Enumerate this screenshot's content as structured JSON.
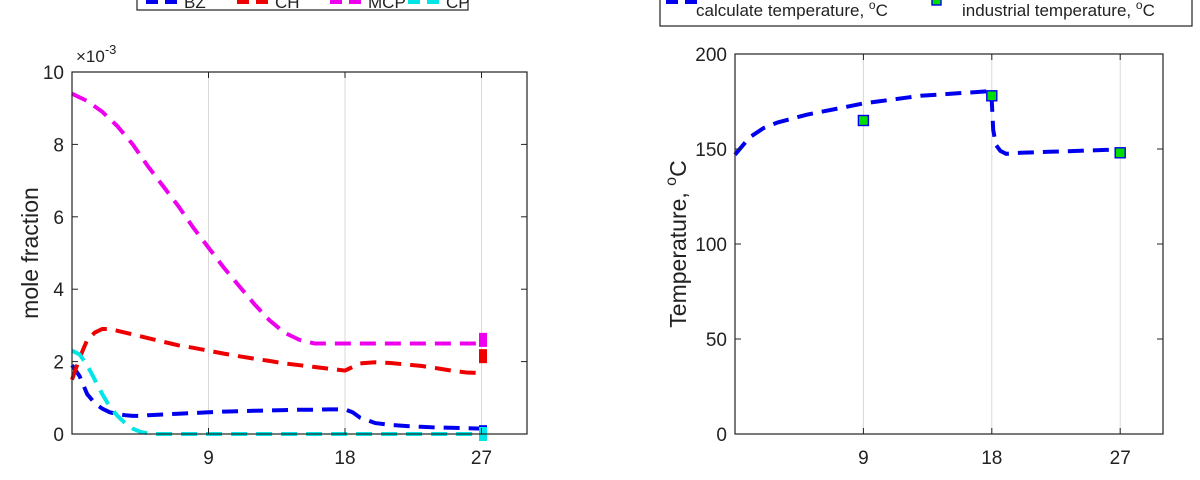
{
  "chart_data": [
    {
      "type": "line",
      "xlabel": "",
      "ylabel": "mole fraction",
      "y_exponent_label": "×10",
      "y_exponent_power": "-3",
      "xlim": [
        0,
        30
      ],
      "ylim": [
        0,
        10
      ],
      "xticks": [
        9,
        18,
        27
      ],
      "xtick_labels": [
        "9",
        "18",
        "27"
      ],
      "yticks": [
        0,
        2,
        4,
        6,
        8,
        10
      ],
      "ytick_labels": [
        "0",
        "2",
        "4",
        "6",
        "8",
        "10"
      ],
      "grid": "vertical lines at x ticks",
      "legend_placement": "top, above plot (partially cropped)",
      "series": [
        {
          "name": "BZ",
          "color": "#0000ee",
          "x": [
            0,
            0.5,
            1,
            1.5,
            2,
            2.5,
            3,
            3.5,
            4,
            4.5,
            5,
            6,
            7,
            8,
            9,
            10,
            11,
            12,
            13,
            14,
            15,
            16,
            17,
            18,
            18.5,
            19,
            20,
            21,
            22,
            23,
            24,
            25,
            26,
            27
          ],
          "y": [
            1.9,
            1.6,
            1.1,
            0.85,
            0.7,
            0.6,
            0.55,
            0.52,
            0.5,
            0.5,
            0.52,
            0.54,
            0.56,
            0.58,
            0.6,
            0.62,
            0.63,
            0.64,
            0.65,
            0.66,
            0.67,
            0.67,
            0.68,
            0.68,
            0.6,
            0.45,
            0.3,
            0.25,
            0.22,
            0.2,
            0.18,
            0.17,
            0.16,
            0.15
          ]
        },
        {
          "name": "CH",
          "color": "#ee0000",
          "x": [
            0,
            0.5,
            1,
            1.5,
            2,
            2.5,
            3,
            4,
            5,
            6,
            7,
            8,
            9,
            10,
            11,
            12,
            13,
            14,
            15,
            16,
            17,
            18,
            18.5,
            19,
            20,
            21,
            22,
            23,
            24,
            25,
            26,
            27
          ],
          "y": [
            1.5,
            2.1,
            2.6,
            2.8,
            2.9,
            2.9,
            2.85,
            2.75,
            2.65,
            2.55,
            2.45,
            2.38,
            2.3,
            2.22,
            2.15,
            2.08,
            2.02,
            1.95,
            1.9,
            1.85,
            1.8,
            1.75,
            1.85,
            1.95,
            1.98,
            1.96,
            1.92,
            1.88,
            1.82,
            1.75,
            1.7,
            1.68
          ]
        },
        {
          "name": "MCP",
          "color": "#ee00ee",
          "x": [
            0,
            1,
            2,
            3,
            4,
            5,
            6,
            7,
            8,
            9,
            10,
            11,
            12,
            13,
            14,
            15,
            16,
            17,
            18,
            19,
            20,
            21,
            22,
            23,
            24,
            25,
            26,
            27
          ],
          "y": [
            9.4,
            9.2,
            8.9,
            8.5,
            8.0,
            7.4,
            6.85,
            6.3,
            5.7,
            5.15,
            4.6,
            4.1,
            3.6,
            3.15,
            2.8,
            2.6,
            2.5,
            2.5,
            2.5,
            2.5,
            2.5,
            2.5,
            2.5,
            2.5,
            2.5,
            2.5,
            2.5,
            2.5
          ]
        },
        {
          "name": "CP",
          "color": "#00e5e5",
          "x": [
            0,
            0.5,
            1,
            1.5,
            2,
            2.5,
            3,
            3.5,
            4,
            4.5,
            5,
            5.5,
            6,
            7,
            9,
            12,
            15,
            18,
            21,
            24,
            27
          ],
          "y": [
            2.3,
            2.2,
            1.9,
            1.5,
            1.1,
            0.75,
            0.5,
            0.3,
            0.15,
            0.06,
            0.02,
            0.0,
            0.0,
            0.0,
            0.0,
            0.0,
            0.0,
            0.0,
            0.0,
            0.0,
            0.0
          ]
        }
      ],
      "end_markers": [
        {
          "series": "BZ",
          "x": 27,
          "y": 0.05
        },
        {
          "series": "CH",
          "x": 27,
          "y": 2.15
        },
        {
          "series": "MCP",
          "x": 27,
          "y": 2.6
        },
        {
          "series": "CP",
          "x": 27,
          "y": 0.0
        }
      ]
    },
    {
      "type": "line",
      "xlabel": "",
      "ylabel": "Temperature, ",
      "ylabel_super": "o",
      "ylabel_unit": "C",
      "xlim": [
        0,
        30
      ],
      "ylim": [
        0,
        200
      ],
      "xticks": [
        9,
        18,
        27
      ],
      "xtick_labels": [
        "9",
        "18",
        "27"
      ],
      "yticks": [
        0,
        50,
        100,
        150,
        200
      ],
      "ytick_labels": [
        "0",
        "50",
        "100",
        "150",
        "200"
      ],
      "grid": "vertical lines at x ticks",
      "legend_placement": "top, above plot (partially cropped)",
      "series": [
        {
          "name": "calculate temperature, °C",
          "legend_text": "calculate temperature,",
          "legend_super": "o",
          "legend_unit": "C",
          "color": "#0000ee",
          "style": "dashed",
          "x": [
            0,
            1,
            2,
            3,
            4,
            5,
            6,
            7,
            8,
            9,
            10,
            11,
            12,
            13,
            14,
            15,
            16,
            17,
            17.9,
            18,
            18.1,
            18.3,
            18.6,
            19,
            20,
            22,
            24,
            26,
            27
          ],
          "y": [
            147,
            156,
            161,
            164,
            166,
            168,
            169.5,
            171,
            172.5,
            174,
            175,
            176,
            177,
            178,
            178.5,
            179,
            179.5,
            180,
            180.5,
            175,
            160,
            152,
            149,
            147.5,
            148,
            148.5,
            149,
            149.5,
            149.5
          ]
        },
        {
          "name": "industrial temperature, °C",
          "legend_text": "industrial temperature,",
          "legend_super": "o",
          "legend_unit": "C",
          "color": "#00dd00",
          "edge_color": "#0000ee",
          "style": "square markers",
          "x": [
            9,
            18,
            27
          ],
          "y": [
            165,
            178,
            148
          ]
        }
      ]
    }
  ],
  "legends": {
    "left": [
      "BZ",
      "CH",
      "MCP",
      "CP"
    ],
    "right": [
      "calculate temperature,",
      "industrial temperature,"
    ]
  }
}
